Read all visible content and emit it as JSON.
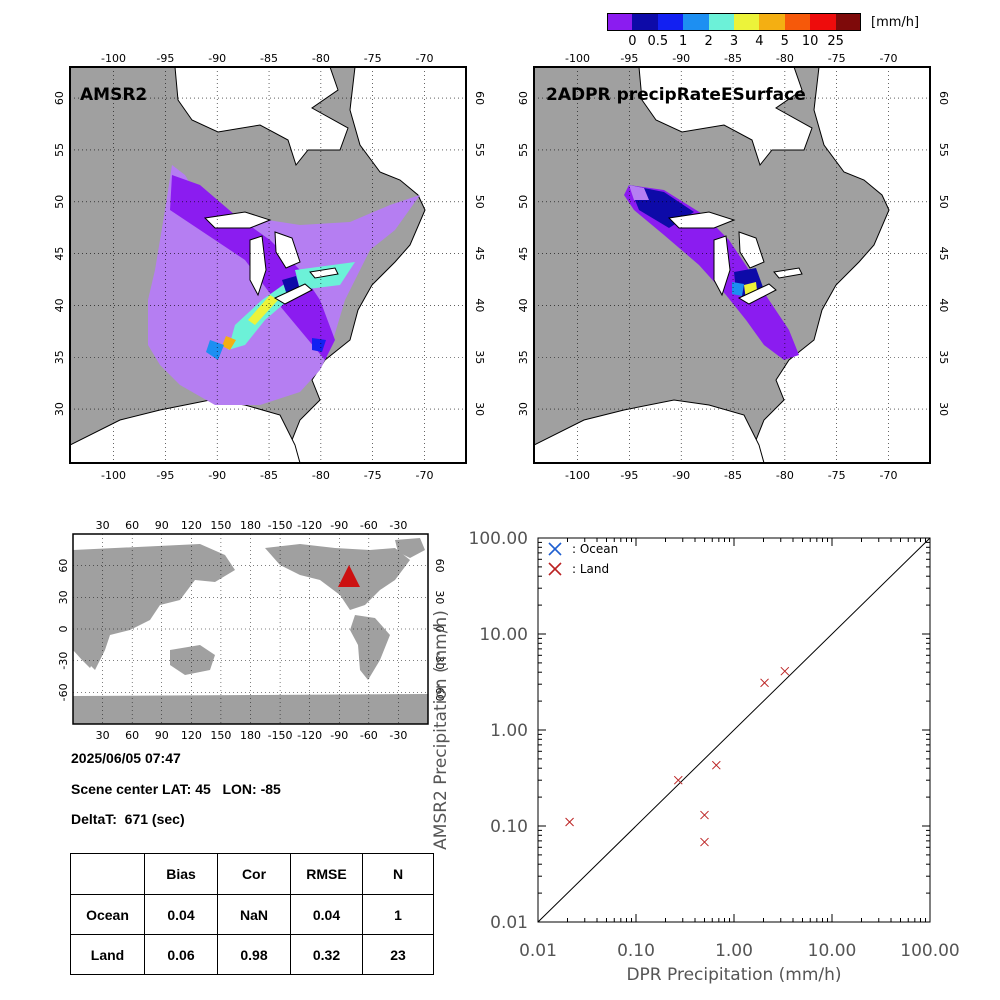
{
  "colorbar": {
    "unit": "[mm/h]",
    "ticks": [
      "0",
      "0.5",
      "1",
      "2",
      "3",
      "4",
      "5",
      "10",
      "25"
    ],
    "colors": [
      "#8b1cf0",
      "#0d0aa8",
      "#1220f2",
      "#1d8ff2",
      "#6cf1d8",
      "#ecf33a",
      "#f4af12",
      "#f6590a",
      "#ee0c0c",
      "#7e0a0a"
    ]
  },
  "maps": {
    "left_title": "AMSR2",
    "right_title": "2ADPR precipRateESurface",
    "lon_ticks": [
      "-100",
      "-95",
      "-90",
      "-85",
      "-80",
      "-75",
      "-70"
    ],
    "lat_ticks": [
      "60",
      "55",
      "50",
      "45",
      "40",
      "35",
      "30"
    ],
    "land_color": "#a0a0a0",
    "water_color": "#ffffff",
    "light_rain_color": "#b57ef2"
  },
  "globe": {
    "top_ticks": [
      "30",
      "60",
      "90",
      "120",
      "150",
      "180",
      "-150",
      "-120",
      "-90",
      "-60",
      "-30"
    ],
    "lat_ticks": [
      "60",
      "30",
      "0",
      "-30",
      "-60"
    ],
    "marker_color": "#cc1111"
  },
  "info": {
    "datetime": "2025/06/05 07:47",
    "scene_center": "Scene center LAT: 45   LON: -85",
    "delta_t": "DeltaT:  671 (sec)"
  },
  "stats_table": {
    "headers": [
      "",
      "Bias",
      "Cor",
      "RMSE",
      "N"
    ],
    "rows": [
      {
        "label": "Ocean",
        "bias": "0.04",
        "cor": "NaN",
        "rmse": "0.04",
        "n": "1"
      },
      {
        "label": "Land",
        "bias": "0.06",
        "cor": "0.98",
        "rmse": "0.32",
        "n": "23"
      }
    ]
  },
  "chart_data": {
    "type": "scatter",
    "xlabel": "DPR Precipitation (mm/h)",
    "ylabel": "AMSR2 Precipitation (mm/h)",
    "xscale": "log",
    "yscale": "log",
    "xlim": [
      0.01,
      100
    ],
    "ylim": [
      0.01,
      100
    ],
    "tick_labels": [
      "0.01",
      "0.10",
      "1.00",
      "10.00",
      "100.00"
    ],
    "legend_position": "top-left",
    "one_to_one_line": true,
    "series": [
      {
        "name": ": Ocean",
        "color": "#1f5fd0",
        "points": []
      },
      {
        "name": ": Land",
        "color": "#bb2222",
        "points": [
          {
            "x": 0.021,
            "y": 0.11
          },
          {
            "x": 0.27,
            "y": 0.3
          },
          {
            "x": 0.5,
            "y": 0.13
          },
          {
            "x": 0.5,
            "y": 0.068
          },
          {
            "x": 0.66,
            "y": 0.43
          },
          {
            "x": 2.05,
            "y": 3.1
          },
          {
            "x": 3.3,
            "y": 4.1
          }
        ]
      }
    ]
  }
}
